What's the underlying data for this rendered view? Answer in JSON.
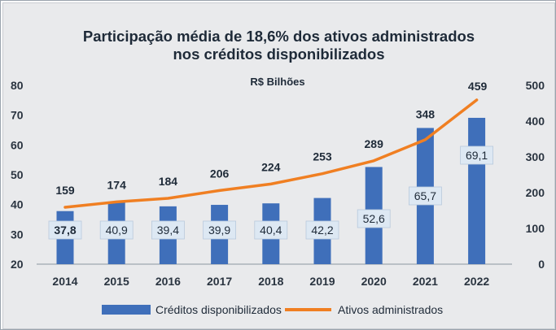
{
  "chart_data": {
    "type": "bar",
    "title_lines": [
      "Participação média de 18,6% dos ativos administrados",
      "nos créditos disponibilizados"
    ],
    "subtitle": "R$ Bilhões",
    "categories": [
      "2014",
      "2015",
      "2016",
      "2017",
      "2018",
      "2019",
      "2020",
      "2021",
      "2022"
    ],
    "series": [
      {
        "name": "Créditos disponibilizados",
        "type": "bar",
        "axis": "left",
        "color": "#3f6fba",
        "values": [
          37.8,
          40.9,
          39.4,
          39.9,
          40.4,
          42.2,
          52.6,
          65.7,
          69.1
        ],
        "labels": [
          "37,8",
          "40,9",
          "39,4",
          "39,9",
          "40,4",
          "42,2",
          "52,6",
          "65,7",
          "69,1"
        ]
      },
      {
        "name": "Ativos administrados",
        "type": "line",
        "axis": "right",
        "color": "#f07f22",
        "values": [
          159,
          174,
          184,
          206,
          224,
          253,
          289,
          348,
          459
        ],
        "labels": [
          "159",
          "174",
          "184",
          "206",
          "224",
          "253",
          "289",
          "348",
          "459"
        ]
      }
    ],
    "y_left": {
      "min": 20,
      "max": 80,
      "ticks": [
        "20",
        "30",
        "40",
        "50",
        "60",
        "70",
        "80"
      ]
    },
    "y_right": {
      "min": 0,
      "max": 500,
      "ticks": [
        "0",
        "100",
        "200",
        "300",
        "400",
        "500"
      ]
    },
    "legend_position": "bottom",
    "grid": false
  }
}
